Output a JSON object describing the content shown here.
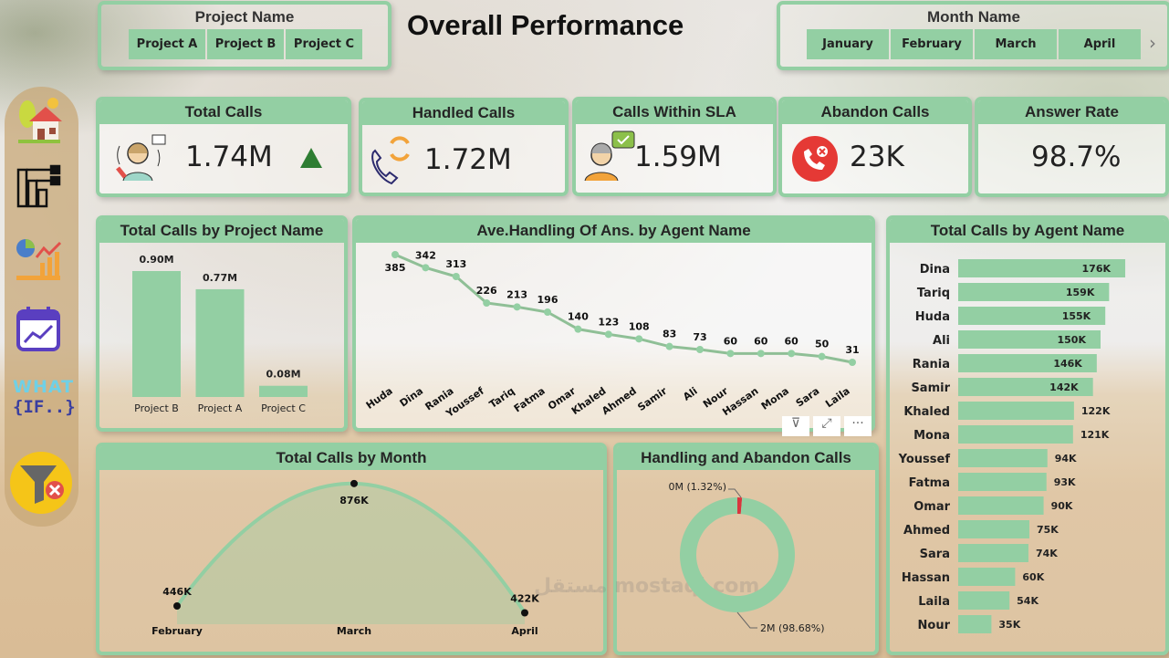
{
  "title": "Overall Performance",
  "project_slicer": {
    "title": "Project Name",
    "options": [
      "Project A",
      "Project B",
      "Project C"
    ]
  },
  "month_slicer": {
    "title": "Month Name",
    "options": [
      "January",
      "February",
      "March",
      "April"
    ],
    "next_icon": "chevron-right-icon"
  },
  "sidebar": {
    "items": [
      "home-icon",
      "project-structure-icon",
      "analytics-icon",
      "calendar-chart-icon",
      "what-if-icon",
      "clear-filter-icon"
    ],
    "what_if_line1": "WHAT",
    "what_if_line2": "{IF..}"
  },
  "kpis": [
    {
      "label": "Total Calls",
      "value": "1.74M",
      "icon": "agent-headset-icon",
      "trend": "up"
    },
    {
      "label": "Handled Calls",
      "value": "1.72M",
      "icon": "phone-refresh-icon"
    },
    {
      "label": "Calls Within SLA",
      "value": "1.59M",
      "icon": "agent-check-icon"
    },
    {
      "label": "Abandon Calls",
      "value": "23K",
      "icon": "phone-x-icon"
    },
    {
      "label": "Answer Rate",
      "value": "98.7%"
    }
  ],
  "colors": {
    "accent": "#93cfa3",
    "line": "#8fbf96",
    "donut_red": "#d9363e",
    "up": "#2e7d32"
  },
  "visual_actions": [
    "filter-icon",
    "focus-mode-icon",
    "more-options-icon"
  ],
  "watermark": "مستقل mostaql.com",
  "chart_data": [
    {
      "type": "bar",
      "title": "Total Calls by Project Name",
      "categories": [
        "Project B",
        "Project A",
        "Project C"
      ],
      "values": [
        0.9,
        0.77,
        0.08
      ],
      "labels": [
        "0.90M",
        "0.77M",
        "0.08M"
      ],
      "unit": "M"
    },
    {
      "type": "line",
      "title": "Ave.Handling Of Ans. by Agent Name",
      "categories": [
        "Huda",
        "Dina",
        "Rania",
        "Youssef",
        "Tariq",
        "Fatma",
        "Omar",
        "Khaled",
        "Ahmed",
        "Samir",
        "Ali",
        "Nour",
        "Hassan",
        "Mona",
        "Sara",
        "Laila"
      ],
      "values": [
        385,
        342,
        313,
        226,
        213,
        196,
        140,
        123,
        108,
        83,
        73,
        60,
        60,
        60,
        50,
        31
      ]
    },
    {
      "type": "bar",
      "orientation": "horizontal",
      "title": "Total Calls by Agent Name",
      "categories": [
        "Dina",
        "Tariq",
        "Huda",
        "Ali",
        "Rania",
        "Samir",
        "Khaled",
        "Mona",
        "Youssef",
        "Fatma",
        "Omar",
        "Ahmed",
        "Sara",
        "Hassan",
        "Laila",
        "Nour"
      ],
      "values": [
        176,
        159,
        155,
        150,
        146,
        142,
        122,
        121,
        94,
        93,
        90,
        75,
        74,
        60,
        54,
        35
      ],
      "labels": [
        "176K",
        "159K",
        "155K",
        "150K",
        "146K",
        "142K",
        "122K",
        "121K",
        "94K",
        "93K",
        "90K",
        "75K",
        "74K",
        "60K",
        "54K",
        "35K"
      ],
      "unit": "K"
    },
    {
      "type": "area",
      "title": "Total Calls by Month",
      "categories": [
        "February",
        "March",
        "April"
      ],
      "values": [
        446,
        876,
        422
      ],
      "labels": [
        "446K",
        "876K",
        "422K"
      ],
      "unit": "K"
    },
    {
      "type": "pie",
      "variant": "donut",
      "title": "Handling and Abandon Calls",
      "slices": [
        {
          "name": "Abandon",
          "value": 1.32,
          "label": "0M (1.32%)"
        },
        {
          "name": "Handled",
          "value": 98.68,
          "label": "2M (98.68%)"
        }
      ]
    }
  ]
}
